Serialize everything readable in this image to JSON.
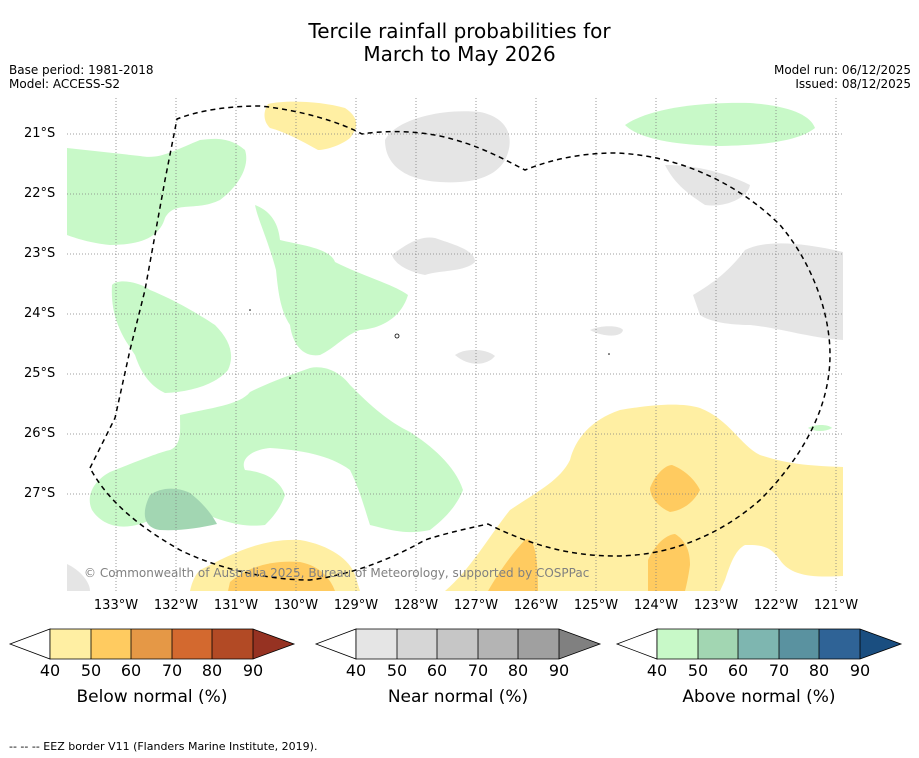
{
  "title": {
    "line1": "Tercile rainfall probabilities for",
    "line2": "March to May 2026"
  },
  "meta_left": {
    "base_period": "Base period: 1981-2018",
    "model": "Model: ACCESS-S2"
  },
  "meta_right": {
    "model_run": "Model run: 06/12/2025",
    "issued": "Issued: 08/12/2025"
  },
  "longitude_labels": [
    "133°W",
    "132°W",
    "131°W",
    "130°W",
    "129°W",
    "128°W",
    "127°W",
    "126°W",
    "125°W",
    "124°W",
    "123°W",
    "122°W",
    "121°W"
  ],
  "latitude_labels": [
    "21°S",
    "22°S",
    "23°S",
    "24°S",
    "25°S",
    "26°S",
    "27°S"
  ],
  "copyright": "© Commonwealth of Australia 2025, Bureau of Meteorology, supported by COSPPac",
  "colorbars": [
    {
      "title": "Below normal (%)",
      "ticks": [
        "40",
        "50",
        "60",
        "70",
        "80",
        "90"
      ],
      "colors": [
        "#ffefa3",
        "#ffcb60",
        "#e59846",
        "#d3692f",
        "#b24a25",
        "#963222"
      ]
    },
    {
      "title": "Near normal (%)",
      "ticks": [
        "40",
        "50",
        "60",
        "70",
        "80",
        "90"
      ],
      "colors": [
        "#e5e5e5",
        "#d6d6d6",
        "#c6c6c6",
        "#b4b4b4",
        "#a0a0a0",
        "#808080"
      ]
    },
    {
      "title": "Above normal (%)",
      "ticks": [
        "40",
        "50",
        "60",
        "70",
        "80",
        "90"
      ],
      "colors": [
        "#c8f9c8",
        "#a2d6b2",
        "#7eb6b0",
        "#5a92a0",
        "#2f6396",
        "#1a4e80"
      ]
    }
  ],
  "footer": "--  --  -- EEZ border V11 (Flanders Marine Institute, 2019)."
}
